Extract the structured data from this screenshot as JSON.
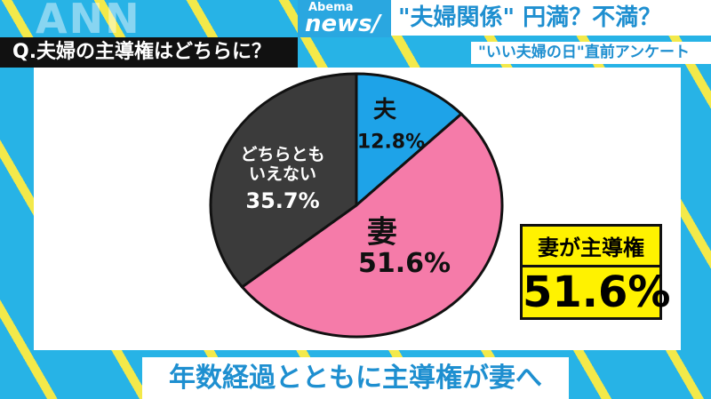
{
  "header": {
    "watermark": "ANN",
    "logo_top": "Abema",
    "logo_main": "news/",
    "headline": "\"夫婦関係\" 円満？不満？",
    "subheadline": "\"いい夫婦の日\"直前アンケート"
  },
  "chart_data": {
    "type": "pie",
    "title": "Q.夫婦の主導権はどちらに？",
    "categories": [
      "夫",
      "妻",
      "どちらとも\nいえない"
    ],
    "values": [
      12.8,
      51.6,
      35.7
    ],
    "value_labels": [
      "12.8%",
      "51.6%",
      "35.7%"
    ],
    "colors": [
      "#1ea3e8",
      "#f57ba9",
      "#3b3b3b"
    ]
  },
  "callout": {
    "label": "妻が主導権",
    "value": "51.6%"
  },
  "caption": "年数経過とともに主導権が妻へ"
}
